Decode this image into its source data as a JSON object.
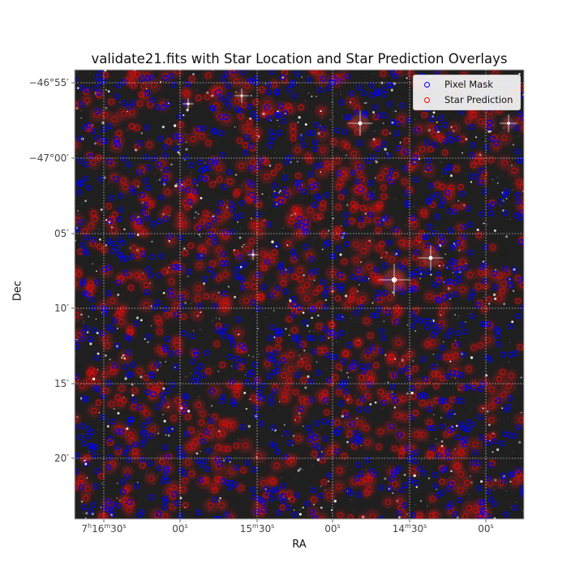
{
  "chart_data": {
    "type": "scatter",
    "title": "validate21.fits with Star Location and Star Prediction Overlays",
    "xlabel": "RA",
    "ylabel": "Dec",
    "x_tick_labels": [
      {
        "h": "7",
        "m": "16",
        "s": "30"
      },
      {
        "h": "",
        "m": "",
        "s": "00"
      },
      {
        "h": "",
        "m": "15",
        "s": "30"
      },
      {
        "h": "",
        "m": "",
        "s": "00"
      },
      {
        "h": "",
        "m": "14",
        "s": "30"
      },
      {
        "h": "",
        "m": "",
        "s": "00"
      }
    ],
    "y_tick_labels": [
      "−46°55′",
      "−47°00′",
      "05′",
      "10′",
      "15′",
      "20′"
    ],
    "legend": {
      "placement": "top-right",
      "entries": [
        {
          "label": "Pixel Mask",
          "color": "#0000ff",
          "marker": "open-circle"
        },
        {
          "label": "Star Prediction",
          "color": "#ff0000",
          "marker": "open-circle"
        }
      ]
    },
    "grid": true,
    "background": "grayscale star field image",
    "series": [
      {
        "name": "Pixel Mask",
        "color": "#0000ff",
        "count_estimate": 1100
      },
      {
        "name": "Star Prediction",
        "color": "#ff0000",
        "count_estimate": 900
      }
    ],
    "bright_stars": [
      {
        "label": "",
        "note": "bright star with diffraction spikes"
      }
    ]
  },
  "colors": {
    "image_background": "#1f1f1f",
    "pixel_mask": "#0000ff",
    "star_prediction": "#ff0000",
    "grid": "#ffffff",
    "tick_text": "#444444"
  }
}
